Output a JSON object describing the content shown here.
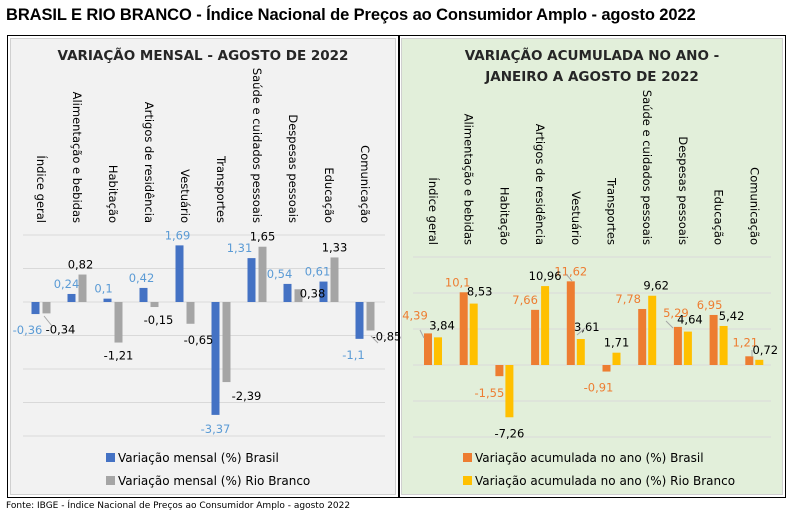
{
  "page": {
    "title": "BRASIL E RIO BRANCO - Índice Nacional de Preços ao Consumidor Amplo - agosto 2022",
    "source": "Fonte: IBGE - Índice Nacional de Preços ao Consumidor Amplo - agosto 2022"
  },
  "colors": {
    "brasil_monthly": "#4472C4",
    "riobranco_monthly": "#A5A5A5",
    "brasil_monthly_label": "#5B9BD5",
    "brasil_accum": "#ED7D31",
    "riobranco_accum": "#FFC000",
    "brasil_accum_label": "#ED7D31",
    "riobranco_label": "#000000",
    "panel_left_bg": "#F2F2F2",
    "panel_right_bg": "#E2EFDA"
  },
  "chart_data": [
    {
      "type": "bar",
      "title": "VARIAÇÃO MENSAL - AGOSTO DE 2022",
      "title_lines": [
        "VARIAÇÃO MENSAL - AGOSTO DE 2022"
      ],
      "xlabel": "",
      "ylabel": "",
      "ylim": [
        -4,
        2
      ],
      "y_gridline_step": 1,
      "grid": true,
      "legend_position": "bottom",
      "categories": [
        "Índice geral",
        "Alimentação e bebidas",
        "Habitação",
        "Artigos de residência",
        "Vestuário",
        "Transportes",
        "Saúde e cuidados pessoais",
        "Despesas pessoais",
        "Educação",
        "Comunicação"
      ],
      "series": [
        {
          "name": "Variação mensal (%) Brasil",
          "values": [
            -0.36,
            0.24,
            0.1,
            0.42,
            1.69,
            -3.37,
            1.31,
            0.54,
            0.61,
            -1.1
          ],
          "labels": [
            "-0,36",
            "0,24",
            "0,1",
            "0,42",
            "1,69",
            "-3,37",
            "1,31",
            "0,54",
            "0,61",
            "-1,1"
          ]
        },
        {
          "name": "Variação mensal (%) Rio Branco",
          "values": [
            -0.34,
            0.82,
            -1.21,
            -0.15,
            -0.65,
            -2.39,
            1.65,
            0.38,
            1.33,
            -0.85
          ],
          "labels": [
            "-0,34",
            "0,82",
            "-1,21",
            "-0,15",
            "-0,65",
            "-2,39",
            "1,65",
            "0,38",
            "1,33",
            "-0,85"
          ]
        }
      ]
    },
    {
      "type": "bar",
      "title": "VARIAÇÃO ACUMULADA NO ANO - JANEIRO A AGOSTO DE 2022",
      "title_lines": [
        "VARIAÇÃO ACUMULADA NO ANO -",
        "JANEIRO A AGOSTO DE 2022"
      ],
      "xlabel": "",
      "ylabel": "",
      "ylim": [
        -10,
        15
      ],
      "y_gridline_step": 5,
      "grid": true,
      "legend_position": "bottom",
      "categories": [
        "Índice geral",
        "Alimentação e bebidas",
        "Habitação",
        "Artigos de residência",
        "Vestuário",
        "Transportes",
        "Saúde e cuidados pessoais",
        "Despesas pessoais",
        "Educação",
        "Comunicação"
      ],
      "series": [
        {
          "name": "Variação acumulada no ano (%) Brasil",
          "values": [
            4.39,
            10.1,
            -1.55,
            7.66,
            11.62,
            -0.91,
            7.78,
            5.29,
            6.95,
            1.21
          ],
          "labels": [
            "4,39",
            "10,1",
            "-1,55",
            "7,66",
            "11,62",
            "-0,91",
            "7,78",
            "5,29",
            "6,95",
            "1,21"
          ]
        },
        {
          "name": "Variação acumulada no ano (%) Rio Branco",
          "values": [
            3.84,
            8.53,
            -7.26,
            10.96,
            3.61,
            1.71,
            9.62,
            4.64,
            5.42,
            0.72
          ],
          "labels": [
            "3,84",
            "8,53",
            "-7,26",
            "10,96",
            "3,61",
            "1,71",
            "9,62",
            "4,64",
            "5,42",
            "0,72"
          ]
        }
      ]
    }
  ]
}
